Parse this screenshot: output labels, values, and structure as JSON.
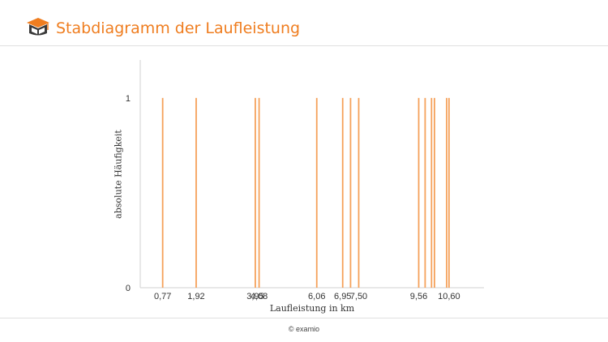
{
  "header": {
    "title": "Stabdiagramm der Laufleistung"
  },
  "footer": {
    "copyright": "© examio"
  },
  "colors": {
    "accent": "#ef7d1f",
    "bar": "#f5a15a",
    "axis": "#d0d0d0"
  },
  "chart_data": {
    "type": "bar",
    "title": "Stabdiagramm der Laufleistung",
    "xlabel": "Laufleistung in km",
    "ylabel": "absolute Häufigkeit",
    "ylim": [
      0,
      1.2
    ],
    "xlim": [
      0,
      11.8
    ],
    "grid": false,
    "legend": "none",
    "y_ticks": [
      0,
      1
    ],
    "x_tick_labels": [
      {
        "value": 0.77,
        "label": "0,77"
      },
      {
        "value": 1.92,
        "label": "1,92"
      },
      {
        "value": 3.95,
        "label": "3,95"
      },
      {
        "value": 4.08,
        "label": "4,08"
      },
      {
        "value": 6.06,
        "label": "6,06"
      },
      {
        "value": 6.95,
        "label": "6,95"
      },
      {
        "value": 7.5,
        "label": "7,50"
      },
      {
        "value": 9.56,
        "label": "9,56"
      },
      {
        "value": 10.6,
        "label": "10,60"
      }
    ],
    "x": [
      0.77,
      1.92,
      3.95,
      4.08,
      6.06,
      6.95,
      7.22,
      7.5,
      9.56,
      9.78,
      10.0,
      10.1,
      10.52,
      10.6
    ],
    "values": [
      1,
      1,
      1,
      1,
      1,
      1,
      1,
      1,
      1,
      1,
      1,
      1,
      1,
      1
    ]
  }
}
